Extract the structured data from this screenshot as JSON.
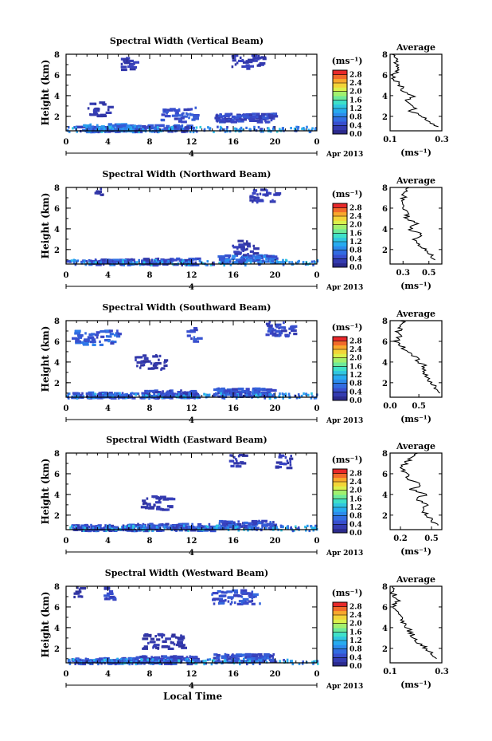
{
  "chart_data": [
    {
      "type": "heatmap",
      "title": "Spectral Width (Vertical Beam)",
      "ylabel": "Height (km)",
      "yticks": [
        "2",
        "4",
        "6",
        "8"
      ],
      "ylim": [
        0.6,
        8
      ],
      "xticks": [
        "0",
        "4",
        "8",
        "12",
        "16",
        "20",
        "0"
      ],
      "xlim": [
        0,
        24
      ],
      "date_axis": {
        "day": "4",
        "label": "Apr 2013"
      },
      "colorbar": {
        "unit": "(ms⁻¹)",
        "ticks": [
          "0.0",
          "0.4",
          "0.8",
          "1.2",
          "1.6",
          "2.0",
          "2.4",
          "2.8"
        ],
        "range": [
          0,
          3.0
        ]
      },
      "average": {
        "title": "Average",
        "xlabel": "(ms⁻¹)",
        "xticks": [
          "0.1",
          "0.3"
        ],
        "xlim": [
          0.1,
          0.3
        ],
        "yticks": [
          "2",
          "4",
          "6",
          "8"
        ],
        "heights": [
          1.0,
          1.5,
          2.0,
          2.5,
          3.0,
          3.5,
          4.0,
          4.5,
          5.0,
          5.5,
          6.0,
          6.5,
          7.0,
          7.5,
          8.0
        ],
        "values": [
          0.28,
          0.25,
          0.22,
          0.18,
          0.2,
          0.16,
          0.19,
          0.15,
          0.14,
          0.12,
          0.11,
          0.14,
          0.13,
          0.12,
          0.12
        ]
      },
      "rain_events": [
        [
          0.9,
          6.0,
          0.6,
          1.0
        ],
        [
          1.6,
          6.8,
          0.8,
          1.5
        ],
        [
          6.5,
          12.0,
          0.7,
          0.9
        ],
        [
          9.0,
          12.5,
          2.0,
          1.3
        ],
        [
          14.2,
          19.8,
          1.8,
          1.2
        ],
        [
          15.8,
          18.8,
          7.1,
          0.8
        ],
        [
          5.0,
          6.5,
          7.0,
          0.7
        ],
        [
          2.0,
          4.0,
          2.5,
          0.6
        ]
      ]
    },
    {
      "type": "heatmap",
      "title": "Spectral Width (Northward Beam)",
      "ylabel": "Height (km)",
      "yticks": [
        "2",
        "4",
        "6",
        "8"
      ],
      "ylim": [
        0.6,
        8
      ],
      "xticks": [
        "0",
        "4",
        "8",
        "12",
        "16",
        "20",
        "0"
      ],
      "xlim": [
        0,
        24
      ],
      "date_axis": {
        "day": "4",
        "label": "Apr 2013"
      },
      "colorbar": {
        "unit": "(ms⁻¹)",
        "ticks": [
          "0.0",
          "0.4",
          "0.8",
          "1.2",
          "1.6",
          "2.0",
          "2.4",
          "2.8"
        ],
        "range": [
          0,
          3.0
        ]
      },
      "average": {
        "title": "Average",
        "xlabel": "(ms⁻¹)",
        "xticks": [
          "0.3",
          "0.5"
        ],
        "xlim": [
          0.2,
          0.6
        ],
        "yticks": [
          "2",
          "4",
          "6",
          "8"
        ],
        "heights": [
          1.0,
          1.5,
          2.0,
          2.5,
          3.0,
          3.5,
          4.0,
          4.5,
          5.0,
          5.5,
          6.0,
          6.5,
          7.0,
          7.5,
          8.0
        ],
        "values": [
          0.55,
          0.52,
          0.48,
          0.42,
          0.38,
          0.44,
          0.35,
          0.4,
          0.32,
          0.34,
          0.28,
          0.3,
          0.3,
          0.32,
          0.34
        ]
      },
      "rain_events": [
        [
          2.0,
          6.5,
          0.6,
          1.0
        ],
        [
          7.0,
          12.5,
          0.7,
          0.8
        ],
        [
          14.5,
          19.8,
          1.0,
          1.3
        ],
        [
          15.8,
          18.0,
          2.0,
          0.7
        ],
        [
          17.5,
          20.0,
          7.0,
          0.9
        ],
        [
          2.5,
          3.5,
          7.5,
          0.5
        ]
      ]
    },
    {
      "type": "heatmap",
      "title": "Spectral Width (Southward Beam)",
      "ylabel": "Height (km)",
      "yticks": [
        "2",
        "4",
        "6",
        "8"
      ],
      "ylim": [
        0.6,
        8
      ],
      "xticks": [
        "0",
        "4",
        "8",
        "12",
        "16",
        "20",
        "0"
      ],
      "xlim": [
        0,
        24
      ],
      "date_axis": {
        "day": "4",
        "label": "Apr 2013"
      },
      "colorbar": {
        "unit": "(ms⁻¹)",
        "ticks": [
          "0.0",
          "0.4",
          "0.8",
          "1.2",
          "1.6",
          "2.0",
          "2.4",
          "2.8"
        ],
        "range": [
          0,
          3.0
        ]
      },
      "average": {
        "title": "Average",
        "xlabel": "(ms⁻¹)",
        "xticks": [
          "0.0",
          "0.5"
        ],
        "xlim": [
          0,
          0.9
        ],
        "yticks": [
          "2",
          "4",
          "6",
          "8"
        ],
        "heights": [
          1.0,
          1.5,
          2.0,
          2.5,
          3.0,
          3.5,
          4.0,
          4.5,
          5.0,
          5.5,
          6.0,
          6.5,
          7.0,
          7.5,
          8.0
        ],
        "values": [
          0.85,
          0.78,
          0.72,
          0.66,
          0.58,
          0.62,
          0.5,
          0.45,
          0.3,
          0.22,
          0.1,
          0.18,
          0.14,
          0.2,
          0.22
        ]
      },
      "rain_events": [
        [
          0.5,
          6.5,
          0.6,
          1.0
        ],
        [
          7.0,
          12.5,
          0.8,
          0.8
        ],
        [
          14.0,
          19.8,
          1.0,
          1.0
        ],
        [
          19.0,
          22.0,
          7.0,
          1.1
        ],
        [
          0.5,
          5.0,
          6.2,
          1.8
        ],
        [
          11.5,
          12.5,
          6.5,
          1.5
        ],
        [
          6.5,
          9.5,
          3.8,
          0.6
        ]
      ]
    },
    {
      "type": "heatmap",
      "title": "Spectral Width (Eastward Beam)",
      "ylabel": "Height (km)",
      "yticks": [
        "2",
        "4",
        "6",
        "8"
      ],
      "ylim": [
        0.6,
        8
      ],
      "xticks": [
        "0",
        "4",
        "8",
        "12",
        "16",
        "20",
        "0"
      ],
      "xlim": [
        0,
        24
      ],
      "date_axis": {
        "day": "4",
        "label": "Apr 2013"
      },
      "colorbar": {
        "unit": "(ms⁻¹)",
        "ticks": [
          "0.0",
          "0.4",
          "0.8",
          "1.2",
          "1.6",
          "2.0",
          "2.4",
          "2.8"
        ],
        "range": [
          0,
          3.0
        ]
      },
      "average": {
        "title": "Average",
        "xlabel": "(ms⁻¹)",
        "xticks": [
          "0.2",
          "0.5"
        ],
        "xlim": [
          0.1,
          0.6
        ],
        "yticks": [
          "2",
          "4",
          "6",
          "8"
        ],
        "heights": [
          1.0,
          1.5,
          2.0,
          2.5,
          3.0,
          3.5,
          4.0,
          4.5,
          5.0,
          5.5,
          6.0,
          6.5,
          7.0,
          7.5,
          8.0
        ],
        "values": [
          0.55,
          0.5,
          0.46,
          0.4,
          0.48,
          0.35,
          0.44,
          0.3,
          0.42,
          0.25,
          0.28,
          0.2,
          0.25,
          0.3,
          0.38
        ]
      },
      "rain_events": [
        [
          0.5,
          6.5,
          0.6,
          0.8
        ],
        [
          6.0,
          14.0,
          0.7,
          0.9
        ],
        [
          14.5,
          19.8,
          1.0,
          1.0
        ],
        [
          15.5,
          17.0,
          7.2,
          0.8
        ],
        [
          20.0,
          21.5,
          7.0,
          0.8
        ],
        [
          7.0,
          10.0,
          3.0,
          0.7
        ]
      ]
    },
    {
      "type": "heatmap",
      "title": "Spectral Width (Westward Beam)",
      "ylabel": "Height (km)",
      "yticks": [
        "2",
        "4",
        "6",
        "8"
      ],
      "ylim": [
        0.6,
        8
      ],
      "xticks": [
        "0",
        "4",
        "8",
        "12",
        "16",
        "20",
        "0"
      ],
      "xlim": [
        0,
        24
      ],
      "date_axis": {
        "day": "4",
        "label": "Apr 2013"
      },
      "colorbar": {
        "unit": "(ms⁻¹)",
        "ticks": [
          "0.0",
          "0.4",
          "0.8",
          "1.2",
          "1.6",
          "2.0",
          "2.4",
          "2.8"
        ],
        "range": [
          0,
          3.0
        ]
      },
      "average": {
        "title": "Average",
        "xlabel": "(ms⁻¹)",
        "xticks": [
          "0.1",
          "0.3"
        ],
        "xlim": [
          0.1,
          0.3
        ],
        "yticks": [
          "2",
          "4",
          "6",
          "8"
        ],
        "heights": [
          1.0,
          1.5,
          2.0,
          2.5,
          3.0,
          3.5,
          4.0,
          4.5,
          5.0,
          5.5,
          6.0,
          6.5,
          7.0,
          7.5,
          8.0
        ],
        "values": [
          0.29,
          0.26,
          0.24,
          0.21,
          0.19,
          0.18,
          0.17,
          0.15,
          0.14,
          0.12,
          0.11,
          0.13,
          0.12,
          0.11,
          0.12
        ]
      },
      "rain_events": [
        [
          0.5,
          6.5,
          0.6,
          0.9
        ],
        [
          6.5,
          12.5,
          0.8,
          0.8
        ],
        [
          14.0,
          19.8,
          1.0,
          1.0
        ],
        [
          13.8,
          18.5,
          6.8,
          1.5
        ],
        [
          3.5,
          4.5,
          7.0,
          1.2
        ],
        [
          0.5,
          1.5,
          7.5,
          0.5
        ],
        [
          7.0,
          11.0,
          2.5,
          0.6
        ]
      ]
    }
  ],
  "xaxis_title": "Local Time"
}
